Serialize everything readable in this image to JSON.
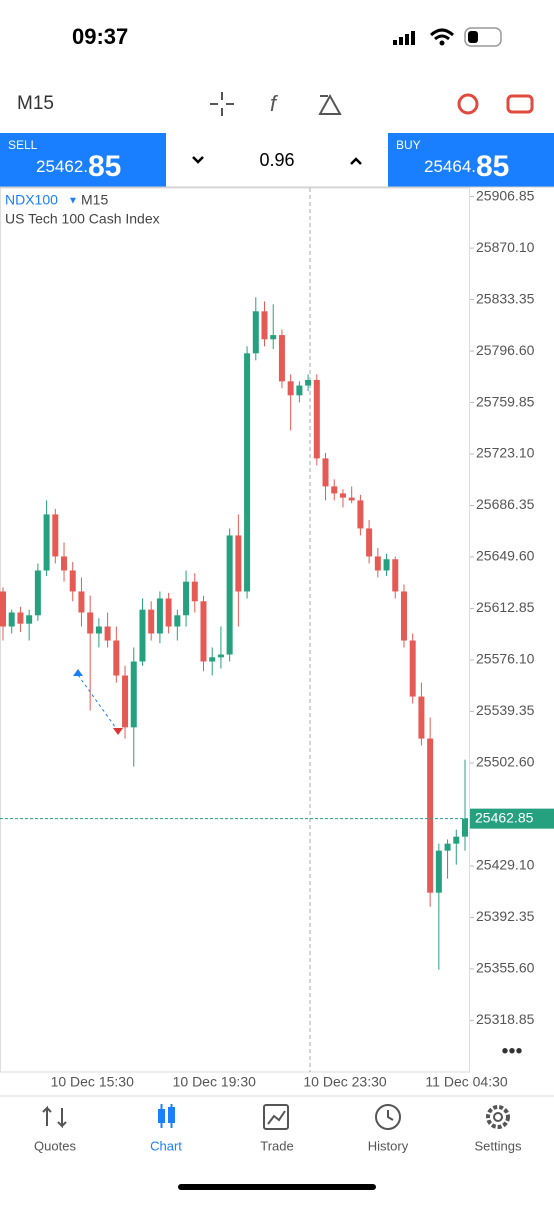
{
  "status_bar": {
    "time": "09:37"
  },
  "toolbar": {
    "timeframe": "M15"
  },
  "quote_bar": {
    "sell_label": "SELL",
    "sell_main": "25462.",
    "sell_big": "85",
    "spread": "0.96",
    "buy_label": "BUY",
    "buy_main": "25464.",
    "buy_big": "85"
  },
  "chart_data": {
    "type": "candlestick",
    "symbol": "NDX100",
    "timeframe": "M15",
    "subtitle": "US Tech 100 Cash Index",
    "categories": [
      null,
      null,
      null,
      null,
      null,
      "10 Dec 15:30",
      null,
      null,
      null,
      null,
      null,
      null,
      null,
      null,
      null,
      null,
      null,
      null,
      null,
      "10 Dec 19:30",
      null,
      null,
      null,
      null,
      null,
      null,
      null,
      null,
      null,
      null,
      null,
      null,
      null,
      null,
      "10 Dec 23:30",
      null,
      null,
      null,
      null,
      null,
      null,
      null,
      null,
      null,
      null,
      null,
      null,
      null,
      "11 Dec 04:30",
      null,
      null,
      null,
      null,
      null
    ],
    "open": [
      25625,
      25600,
      25610,
      25602,
      25608,
      25640,
      25680,
      25650,
      25640,
      25625,
      25610,
      25595,
      25600,
      25590,
      25565,
      25528,
      25575,
      25612,
      25595,
      25620,
      25600,
      25608,
      25632,
      25618,
      25575,
      25578,
      25580,
      25665,
      25625,
      25795,
      25825,
      25805,
      25808,
      25775,
      25765,
      25772,
      25776,
      25720,
      25700,
      25695,
      25692,
      25690,
      25670,
      25650,
      25640,
      25648,
      25625,
      25590,
      25550,
      25520,
      25410,
      25440,
      25445,
      25450
    ],
    "high": [
      25628,
      25612,
      25614,
      25612,
      25645,
      25690,
      25684,
      25660,
      25646,
      25635,
      25622,
      25606,
      25610,
      25600,
      25572,
      25585,
      25620,
      25618,
      25625,
      25624,
      25612,
      25640,
      25638,
      25622,
      25585,
      25600,
      25670,
      25680,
      25800,
      25835,
      25832,
      25830,
      25812,
      25780,
      25775,
      25780,
      25780,
      25724,
      25705,
      25698,
      25700,
      25694,
      25676,
      25656,
      25652,
      25650,
      25630,
      25595,
      25560,
      25535,
      25445,
      25448,
      25455,
      25505
    ],
    "low": [
      25590,
      25595,
      25596,
      25590,
      25604,
      25636,
      25645,
      25632,
      25618,
      25600,
      25540,
      25585,
      25585,
      25560,
      25520,
      25500,
      25572,
      25590,
      25588,
      25595,
      25590,
      25600,
      25610,
      25568,
      25565,
      25570,
      25575,
      25600,
      25620,
      25790,
      25800,
      25798,
      25770,
      25740,
      25760,
      25768,
      25715,
      25690,
      25690,
      25685,
      25688,
      25665,
      25645,
      25635,
      25636,
      25620,
      25585,
      25545,
      25515,
      25400,
      25355,
      25420,
      25430,
      25440
    ],
    "close": [
      25600,
      25610,
      25602,
      25608,
      25640,
      25680,
      25650,
      25640,
      25625,
      25610,
      25595,
      25600,
      25590,
      25565,
      25528,
      25575,
      25612,
      25595,
      25620,
      25600,
      25608,
      25632,
      25618,
      25575,
      25578,
      25580,
      25665,
      25625,
      25795,
      25825,
      25805,
      25808,
      25775,
      25765,
      25772,
      25776,
      25720,
      25700,
      25695,
      25692,
      25690,
      25670,
      25650,
      25640,
      25648,
      25625,
      25590,
      25550,
      25520,
      25410,
      25440,
      25445,
      25450,
      25462.85
    ],
    "up_color": "#26a17f",
    "down_color": "#e65a55",
    "ylim": [
      25282,
      25913
    ],
    "yticks": [
      25906.85,
      {
        "value": 25870.1,
        "label": "25870.10"
      },
      25833.35,
      {
        "value": 25796.6,
        "label": "25796.60"
      },
      25759.85,
      {
        "value": 25723.1,
        "label": "25723.10"
      },
      25686.35,
      {
        "value": 25649.6,
        "label": "25649.60"
      },
      25612.85,
      {
        "value": 25576.1,
        "label": "25576.10"
      },
      25539.35,
      {
        "value": 25502.6,
        "label": "25502.60"
      },
      {
        "value": 25429.1,
        "label": "25429.10"
      },
      25392.35,
      {
        "value": 25355.6,
        "label": "25355.60"
      },
      25318.85
    ],
    "current_price": 25462.85
  },
  "tab_bar": {
    "tabs": [
      "Quotes",
      "Chart",
      "Trade",
      "History",
      "Settings"
    ]
  }
}
